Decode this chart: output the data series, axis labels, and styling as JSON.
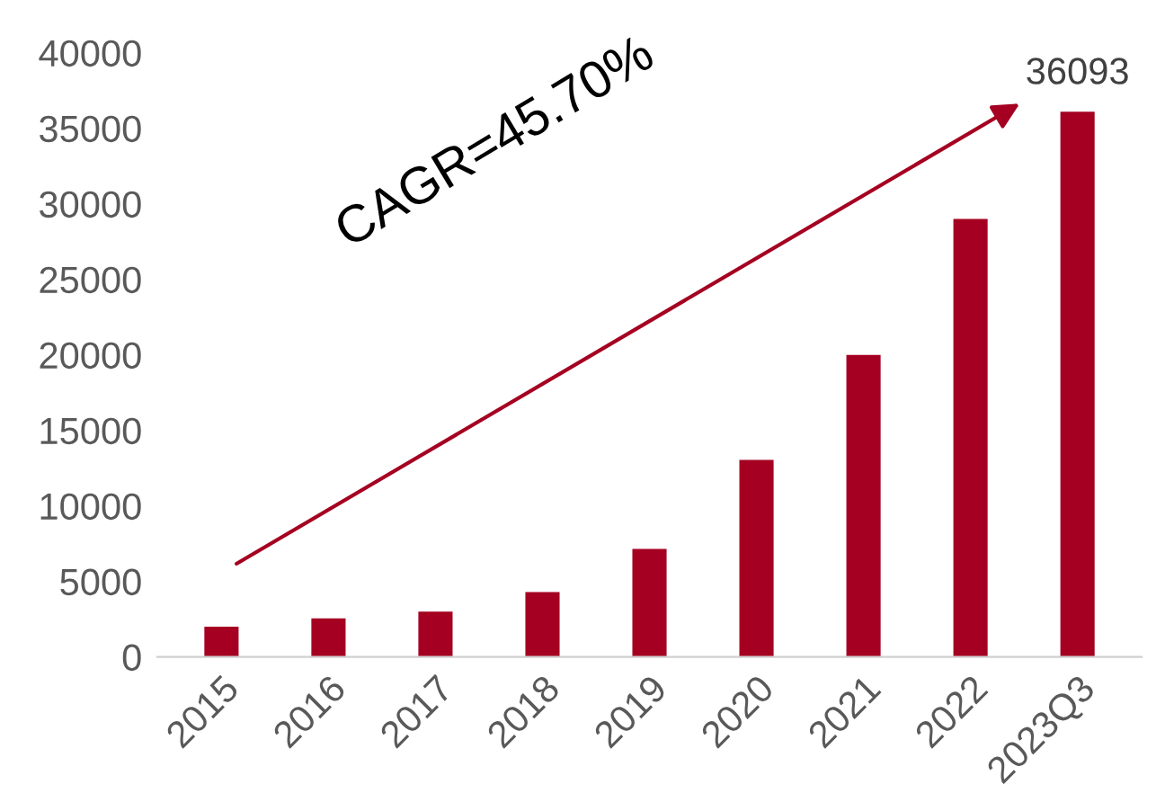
{
  "chart_data": {
    "type": "bar",
    "categories": [
      "2015",
      "2016",
      "2017",
      "2018",
      "2019",
      "2020",
      "2021",
      "2022",
      "2023Q3"
    ],
    "values": [
      2000,
      2550,
      3000,
      4300,
      7150,
      13050,
      20000,
      29000,
      36093
    ],
    "value_labels": [
      null,
      null,
      null,
      null,
      null,
      null,
      null,
      null,
      "36093"
    ],
    "color": "#a50021",
    "ylim": [
      0,
      40000
    ],
    "yticks": [
      0,
      5000,
      10000,
      15000,
      20000,
      25000,
      30000,
      35000,
      40000
    ],
    "grid": false,
    "legend": false,
    "annotations": [
      "CAGR=45.70%"
    ]
  }
}
